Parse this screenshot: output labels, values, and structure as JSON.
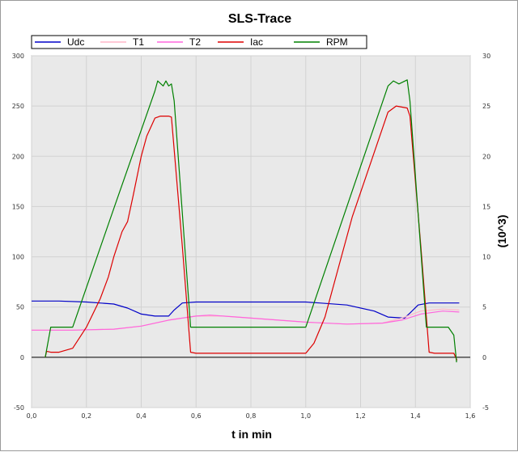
{
  "chart_data": {
    "type": "line",
    "title": "SLS-Trace",
    "xlabel": "t in min",
    "ylabel": "",
    "y2label": "(10^3)",
    "xlim": [
      0.0,
      1.6
    ],
    "ylim": [
      -50,
      300
    ],
    "y2lim": [
      -5,
      30
    ],
    "x_ticks": [
      "0,0",
      "0,2",
      "0,4",
      "0,6",
      "0,8",
      "1,0",
      "1,2",
      "1,4",
      "1,6"
    ],
    "x_tick_values": [
      0.0,
      0.2,
      0.4,
      0.6,
      0.8,
      1.0,
      1.2,
      1.4,
      1.6
    ],
    "y_ticks": [
      "-50",
      "0",
      "50",
      "100",
      "150",
      "200",
      "250",
      "300"
    ],
    "y_tick_values": [
      -50,
      0,
      50,
      100,
      150,
      200,
      250,
      300
    ],
    "y2_ticks": [
      "-5",
      "0",
      "5",
      "10",
      "15",
      "20",
      "25",
      "30"
    ],
    "y2_tick_values": [
      -5,
      0,
      5,
      10,
      15,
      20,
      25,
      30
    ],
    "grid": true,
    "legend_position": "top",
    "series": [
      {
        "name": "Udc",
        "color": "#0000c8",
        "axis": "left",
        "points": [
          [
            0.0,
            56
          ],
          [
            0.1,
            56
          ],
          [
            0.2,
            55
          ],
          [
            0.3,
            53
          ],
          [
            0.35,
            49
          ],
          [
            0.4,
            43
          ],
          [
            0.45,
            41
          ],
          [
            0.5,
            41
          ],
          [
            0.52,
            47
          ],
          [
            0.55,
            54
          ],
          [
            0.6,
            55
          ],
          [
            1.0,
            55
          ],
          [
            1.05,
            54
          ],
          [
            1.15,
            52
          ],
          [
            1.25,
            46
          ],
          [
            1.3,
            40
          ],
          [
            1.36,
            39
          ],
          [
            1.38,
            44
          ],
          [
            1.41,
            52
          ],
          [
            1.45,
            54
          ],
          [
            1.56,
            54
          ]
        ]
      },
      {
        "name": "T1",
        "color": "#ffb6c8",
        "axis": "left",
        "points": [
          [
            0.0,
            27
          ],
          [
            0.15,
            27
          ],
          [
            0.3,
            28
          ],
          [
            0.4,
            31
          ],
          [
            0.5,
            37
          ],
          [
            0.6,
            41
          ],
          [
            0.7,
            41
          ],
          [
            0.85,
            38
          ],
          [
            1.0,
            35
          ],
          [
            1.15,
            33
          ],
          [
            1.28,
            34
          ],
          [
            1.35,
            39
          ],
          [
            1.42,
            46
          ],
          [
            1.5,
            48
          ],
          [
            1.56,
            47
          ]
        ]
      },
      {
        "name": "T2",
        "color": "#ff66dd",
        "axis": "left",
        "points": [
          [
            0.0,
            27
          ],
          [
            0.15,
            27
          ],
          [
            0.3,
            28
          ],
          [
            0.4,
            31
          ],
          [
            0.5,
            37
          ],
          [
            0.6,
            41
          ],
          [
            0.65,
            42
          ],
          [
            0.75,
            40
          ],
          [
            0.85,
            38
          ],
          [
            1.0,
            35
          ],
          [
            1.15,
            33
          ],
          [
            1.28,
            34
          ],
          [
            1.35,
            37
          ],
          [
            1.42,
            43
          ],
          [
            1.5,
            46
          ],
          [
            1.56,
            45
          ]
        ]
      },
      {
        "name": "Iac",
        "color": "#dd0000",
        "axis": "left",
        "points": [
          [
            0.05,
            0
          ],
          [
            0.055,
            6
          ],
          [
            0.07,
            5
          ],
          [
            0.1,
            5
          ],
          [
            0.15,
            9
          ],
          [
            0.2,
            30
          ],
          [
            0.25,
            58
          ],
          [
            0.28,
            80
          ],
          [
            0.3,
            100
          ],
          [
            0.33,
            125
          ],
          [
            0.35,
            135
          ],
          [
            0.37,
            160
          ],
          [
            0.4,
            200
          ],
          [
            0.42,
            220
          ],
          [
            0.45,
            238
          ],
          [
            0.47,
            240
          ],
          [
            0.5,
            240
          ],
          [
            0.51,
            239
          ],
          [
            0.55,
            110
          ],
          [
            0.58,
            5
          ],
          [
            0.6,
            4
          ],
          [
            1.0,
            4
          ],
          [
            1.03,
            14
          ],
          [
            1.07,
            40
          ],
          [
            1.12,
            90
          ],
          [
            1.17,
            140
          ],
          [
            1.22,
            180
          ],
          [
            1.27,
            220
          ],
          [
            1.3,
            244
          ],
          [
            1.33,
            250
          ],
          [
            1.37,
            248
          ],
          [
            1.38,
            240
          ],
          [
            1.42,
            110
          ],
          [
            1.45,
            5
          ],
          [
            1.47,
            4
          ],
          [
            1.54,
            4
          ],
          [
            1.552,
            -3
          ]
        ]
      },
      {
        "name": "RPM",
        "color": "#008000",
        "axis": "right",
        "points": [
          [
            0.05,
            0
          ],
          [
            0.07,
            3
          ],
          [
            0.15,
            3
          ],
          [
            0.3,
            14.8
          ],
          [
            0.45,
            26.5
          ],
          [
            0.46,
            27.5
          ],
          [
            0.48,
            27.0
          ],
          [
            0.49,
            27.5
          ],
          [
            0.5,
            27.0
          ],
          [
            0.51,
            27.2
          ],
          [
            0.52,
            25.5
          ],
          [
            0.58,
            3
          ],
          [
            1.0,
            3
          ],
          [
            1.3,
            27.0
          ],
          [
            1.32,
            27.5
          ],
          [
            1.34,
            27.2
          ],
          [
            1.37,
            27.6
          ],
          [
            1.38,
            25.5
          ],
          [
            1.44,
            3
          ],
          [
            1.52,
            3
          ],
          [
            1.54,
            2.2
          ],
          [
            1.55,
            -0.5
          ]
        ]
      }
    ]
  }
}
